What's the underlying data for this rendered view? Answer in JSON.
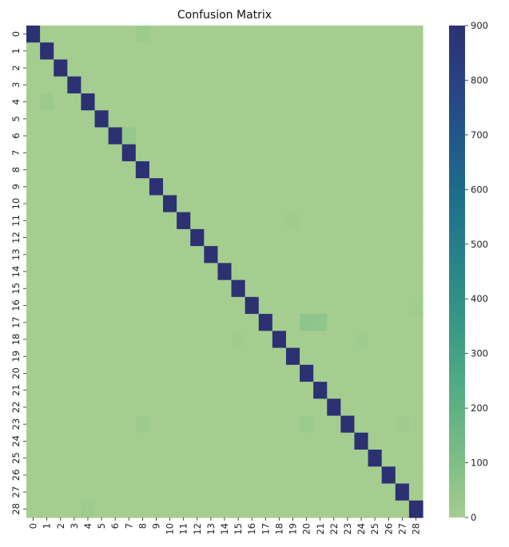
{
  "chart_data": {
    "type": "heatmap",
    "title": "Confusion Matrix",
    "xlabel": "",
    "ylabel": "",
    "x_tick_labels": [
      "0",
      "1",
      "2",
      "3",
      "4",
      "5",
      "6",
      "7",
      "8",
      "9",
      "10",
      "11",
      "12",
      "13",
      "14",
      "15",
      "16",
      "17",
      "18",
      "19",
      "20",
      "21",
      "22",
      "23",
      "24",
      "25",
      "26",
      "27",
      "28"
    ],
    "y_tick_labels": [
      "0",
      "1",
      "2",
      "3",
      "4",
      "5",
      "6",
      "7",
      "8",
      "9",
      "10",
      "11",
      "12",
      "13",
      "14",
      "15",
      "16",
      "17",
      "18",
      "19",
      "20",
      "21",
      "22",
      "23",
      "24",
      "25",
      "26",
      "27",
      "28"
    ],
    "diagonal_value": 900,
    "background_value": 0,
    "off_diagonal_cells": [
      {
        "row": 0,
        "col": 8,
        "value": 20
      },
      {
        "row": 4,
        "col": 1,
        "value": 25
      },
      {
        "row": 6,
        "col": 7,
        "value": 40
      },
      {
        "row": 11,
        "col": 19,
        "value": 10
      },
      {
        "row": 16,
        "col": 28,
        "value": 10
      },
      {
        "row": 17,
        "col": 20,
        "value": 60
      },
      {
        "row": 17,
        "col": 21,
        "value": 55
      },
      {
        "row": 18,
        "col": 15,
        "value": 10
      },
      {
        "row": 18,
        "col": 24,
        "value": 10
      },
      {
        "row": 23,
        "col": 8,
        "value": 20
      },
      {
        "row": 23,
        "col": 20,
        "value": 20
      },
      {
        "row": 23,
        "col": 27,
        "value": 15
      },
      {
        "row": 28,
        "col": 4,
        "value": 15
      }
    ],
    "colorbar": {
      "min": 0,
      "max": 900,
      "ticks": [
        0,
        100,
        200,
        300,
        400,
        500,
        600,
        700,
        800,
        900
      ],
      "colormap": "crest",
      "color_stops": [
        "#a5cd90",
        "#7fbf86",
        "#5eb184",
        "#44a185",
        "#318f87",
        "#267d89",
        "#1f6b8b",
        "#21568b",
        "#2a4186",
        "#2c3172"
      ]
    }
  }
}
